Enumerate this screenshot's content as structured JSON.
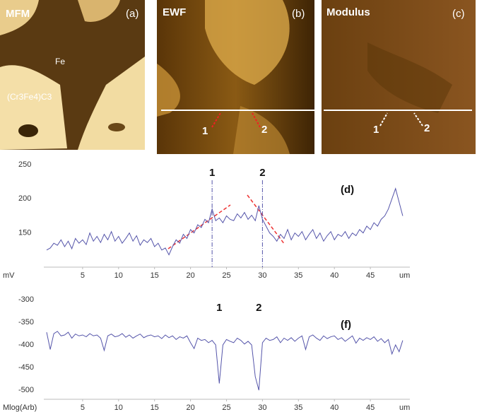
{
  "panels": [
    {
      "title": "MFM",
      "tag": "(a)",
      "labels": [
        "Fe",
        "(Cr3Fe4)C3"
      ]
    },
    {
      "title": "EWF",
      "tag": "(b)",
      "markers": [
        "1",
        "2"
      ]
    },
    {
      "title": "Modulus",
      "tag": "(c)",
      "markers": [
        "1",
        "2"
      ]
    }
  ],
  "chart_data": [
    {
      "type": "line",
      "tag": "(d)",
      "y_label": "mV",
      "x_label": "um",
      "xlim": [
        0,
        50
      ],
      "xticks": [
        5,
        10,
        15,
        20,
        25,
        30,
        35,
        40,
        45
      ],
      "ylim": [
        100,
        250
      ],
      "yticks": [
        150,
        200,
        250
      ],
      "grid": false,
      "annotation_lines": true,
      "annotations": [
        {
          "text": "1",
          "x": 23
        },
        {
          "text": "2",
          "x": 30
        }
      ],
      "x": [
        0,
        0.5,
        1,
        1.5,
        2,
        2.5,
        3,
        3.5,
        4,
        4.5,
        5,
        5.5,
        6,
        6.5,
        7,
        7.5,
        8,
        8.5,
        9,
        9.5,
        10,
        10.5,
        11,
        11.5,
        12,
        12.5,
        13,
        13.5,
        14,
        14.5,
        15,
        15.5,
        16,
        16.5,
        17,
        17.5,
        18,
        18.5,
        19,
        19.5,
        20,
        20.5,
        21,
        21.5,
        22,
        22.5,
        23,
        23.5,
        24,
        24.5,
        25,
        25.5,
        26,
        26.5,
        27,
        27.5,
        28,
        28.5,
        29,
        29.5,
        30,
        30.5,
        31,
        31.5,
        32,
        32.5,
        33,
        33.5,
        34,
        34.5,
        35,
        35.5,
        36,
        36.5,
        37,
        37.5,
        38,
        38.5,
        39,
        39.5,
        40,
        40.5,
        41,
        41.5,
        42,
        42.5,
        43,
        43.5,
        44,
        44.5,
        45,
        45.5,
        46,
        46.5,
        47,
        47.5,
        48,
        48.5,
        49,
        49.5
      ],
      "series": [
        {
          "color": "#5555aa",
          "values": [
            125,
            128,
            135,
            132,
            140,
            130,
            138,
            127,
            142,
            135,
            140,
            133,
            150,
            138,
            145,
            136,
            148,
            140,
            152,
            138,
            145,
            135,
            142,
            150,
            138,
            146,
            132,
            140,
            136,
            142,
            130,
            135,
            125,
            128,
            118,
            130,
            140,
            135,
            148,
            142,
            155,
            150,
            162,
            158,
            170,
            165,
            185,
            168,
            172,
            165,
            175,
            170,
            168,
            178,
            172,
            180,
            170,
            176,
            168,
            190,
            170,
            160,
            150,
            145,
            138,
            148,
            142,
            155,
            140,
            150,
            145,
            152,
            140,
            148,
            155,
            142,
            150,
            138,
            146,
            152,
            140,
            148,
            145,
            152,
            142,
            150,
            146,
            155,
            150,
            160,
            155,
            165,
            160,
            170,
            175,
            185,
            200,
            215,
            195,
            175
          ]
        }
      ]
    },
    {
      "type": "line",
      "tag": "(f)",
      "y_label": "Mlog(Arb)",
      "x_label": "um",
      "xlim": [
        0,
        50
      ],
      "xticks": [
        5,
        10,
        15,
        20,
        25,
        30,
        35,
        40,
        45
      ],
      "ylim": [
        -520,
        -300
      ],
      "yticks": [
        -300,
        -350,
        -400,
        -450,
        -500
      ],
      "grid": false,
      "annotation_lines": false,
      "annotations": [
        {
          "text": "1",
          "x": 24
        },
        {
          "text": "2",
          "x": 29.5
        }
      ],
      "x": [
        0,
        0.5,
        1,
        1.5,
        2,
        2.5,
        3,
        3.5,
        4,
        4.5,
        5,
        5.5,
        6,
        6.5,
        7,
        7.5,
        8,
        8.5,
        9,
        9.5,
        10,
        10.5,
        11,
        11.5,
        12,
        12.5,
        13,
        13.5,
        14,
        14.5,
        15,
        15.5,
        16,
        16.5,
        17,
        17.5,
        18,
        18.5,
        19,
        19.5,
        20,
        20.5,
        21,
        21.5,
        22,
        22.5,
        23,
        23.5,
        24,
        24.5,
        25,
        25.5,
        26,
        26.5,
        27,
        27.5,
        28,
        28.5,
        29,
        29.5,
        30,
        30.5,
        31,
        31.5,
        32,
        32.5,
        33,
        33.5,
        34,
        34.5,
        35,
        35.5,
        36,
        36.5,
        37,
        37.5,
        38,
        38.5,
        39,
        39.5,
        40,
        40.5,
        41,
        41.5,
        42,
        42.5,
        43,
        43.5,
        44,
        44.5,
        45,
        45.5,
        46,
        46.5,
        47,
        47.5,
        48,
        48.5,
        49,
        49.5
      ],
      "series": [
        {
          "color": "#5555aa",
          "values": [
            -372,
            -410,
            -375,
            -370,
            -380,
            -378,
            -372,
            -385,
            -376,
            -380,
            -378,
            -382,
            -375,
            -380,
            -378,
            -385,
            -412,
            -380,
            -376,
            -382,
            -380,
            -375,
            -383,
            -378,
            -385,
            -380,
            -376,
            -384,
            -380,
            -378,
            -382,
            -380,
            -386,
            -378,
            -384,
            -380,
            -388,
            -382,
            -385,
            -380,
            -395,
            -408,
            -385,
            -390,
            -388,
            -395,
            -390,
            -400,
            -485,
            -400,
            -388,
            -392,
            -395,
            -385,
            -390,
            -398,
            -392,
            -400,
            -470,
            -500,
            -395,
            -385,
            -390,
            -388,
            -382,
            -395,
            -385,
            -390,
            -384,
            -392,
            -385,
            -380,
            -410,
            -382,
            -378,
            -385,
            -390,
            -380,
            -386,
            -382,
            -380,
            -388,
            -384,
            -392,
            -386,
            -380,
            -396,
            -385,
            -390,
            -384,
            -388,
            -382,
            -392,
            -386,
            -395,
            -388,
            -420,
            -400,
            -415,
            -390
          ]
        }
      ]
    }
  ]
}
